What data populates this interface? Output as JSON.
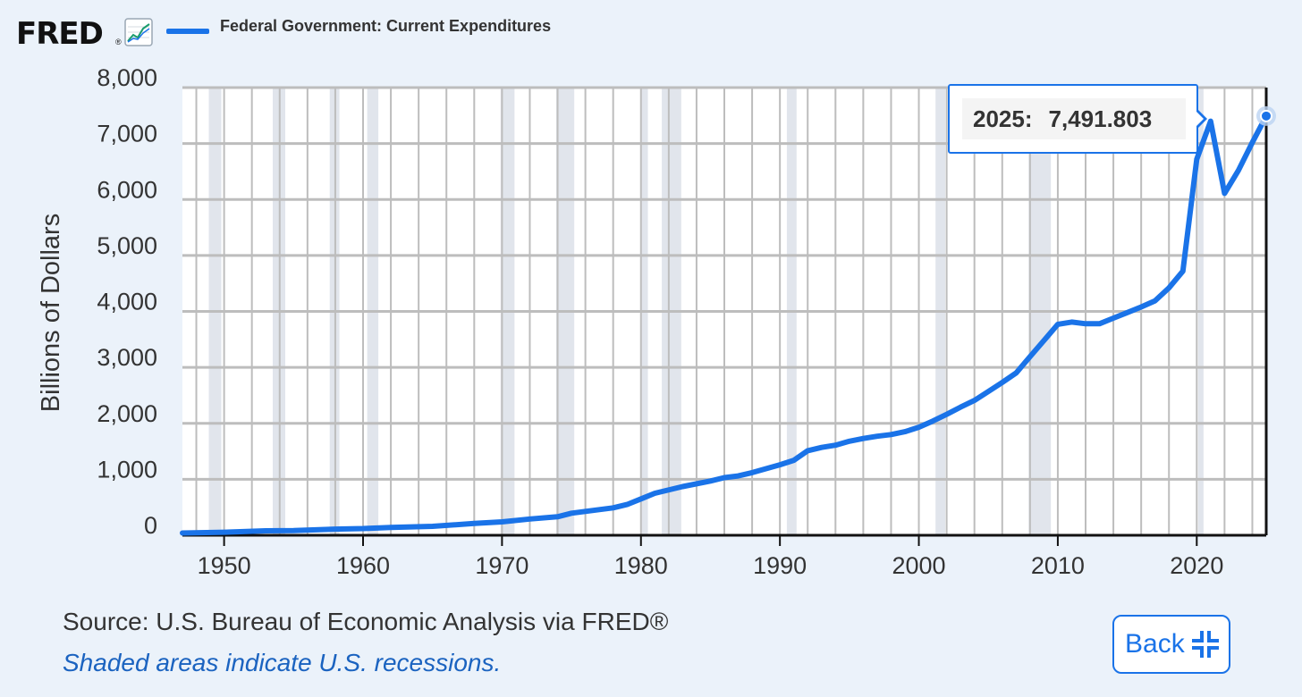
{
  "header": {
    "logo_text": "FRED",
    "logo_reg": "®",
    "legend_label": "Federal Government: Current Expenditures"
  },
  "tooltip": {
    "year": "2025:",
    "value": "7,491.803"
  },
  "footer": {
    "source": "Source: U.S. Bureau of Economic Analysis via FRED®",
    "note": "Shaded areas indicate U.S. recessions.",
    "back_label": "Back"
  },
  "colors": {
    "line": "#1a73e8",
    "recession": "#e1e5ec",
    "background": "#ebf2fa"
  },
  "chart_data": {
    "type": "line",
    "title": "",
    "series": [
      {
        "name": "Federal Government: Current Expenditures",
        "x": [
          1947,
          1950,
          1953,
          1955,
          1958,
          1960,
          1962,
          1965,
          1968,
          1970,
          1972,
          1974,
          1975,
          1978,
          1979,
          1980,
          1981,
          1983,
          1985,
          1986,
          1987,
          1988,
          1990,
          1991,
          1992,
          1993,
          1994,
          1995,
          1996,
          1997,
          1998,
          1999,
          2000,
          2001,
          2002,
          2003,
          2004,
          2005,
          2006,
          2007,
          2008,
          2009,
          2010,
          2011,
          2012,
          2013,
          2014,
          2015,
          2016,
          2017,
          2018,
          2019,
          2020,
          2021,
          2022,
          2023,
          2024,
          2025
        ],
        "values": [
          40,
          55,
          80,
          85,
          110,
          120,
          140,
          160,
          210,
          240,
          290,
          330,
          395,
          490,
          550,
          650,
          750,
          870,
          970,
          1030,
          1060,
          1120,
          1260,
          1340,
          1510,
          1570,
          1610,
          1680,
          1730,
          1770,
          1800,
          1850,
          1930,
          2040,
          2160,
          2290,
          2410,
          2570,
          2730,
          2900,
          3190,
          3480,
          3770,
          3810,
          3780,
          3780,
          3880,
          3980,
          4080,
          4190,
          4420,
          4720,
          6720,
          7400,
          6110,
          6520,
          7020,
          7491.803
        ]
      }
    ],
    "recessions": [
      [
        1948.9,
        1949.8
      ],
      [
        1953.5,
        1954.4
      ],
      [
        1957.6,
        1958.3
      ],
      [
        1960.3,
        1961.1
      ],
      [
        1969.9,
        1970.9
      ],
      [
        1973.9,
        1975.2
      ],
      [
        1980.0,
        1980.5
      ],
      [
        1981.5,
        1982.9
      ],
      [
        1990.5,
        1991.2
      ],
      [
        2001.2,
        2001.9
      ],
      [
        2007.9,
        2009.5
      ],
      [
        2020.1,
        2020.3
      ]
    ],
    "xlabel": "",
    "ylabel": "Billions of Dollars",
    "xlim": [
      1947,
      2025
    ],
    "ylim": [
      0,
      8000
    ],
    "yticks": [
      0,
      1000,
      2000,
      3000,
      4000,
      5000,
      6000,
      7000,
      8000
    ],
    "ytick_labels": [
      "0",
      "1,000",
      "2,000",
      "3,000",
      "4,000",
      "5,000",
      "6,000",
      "7,000",
      "8,000"
    ],
    "xticks": [
      1950,
      1960,
      1970,
      1980,
      1990,
      2000,
      2010,
      2020
    ],
    "xtick_labels": [
      "1950",
      "1960",
      "1970",
      "1980",
      "1990",
      "2000",
      "2010",
      "2020"
    ],
    "grid": true,
    "highlight": {
      "x": 2025,
      "y": 7491.803
    }
  }
}
